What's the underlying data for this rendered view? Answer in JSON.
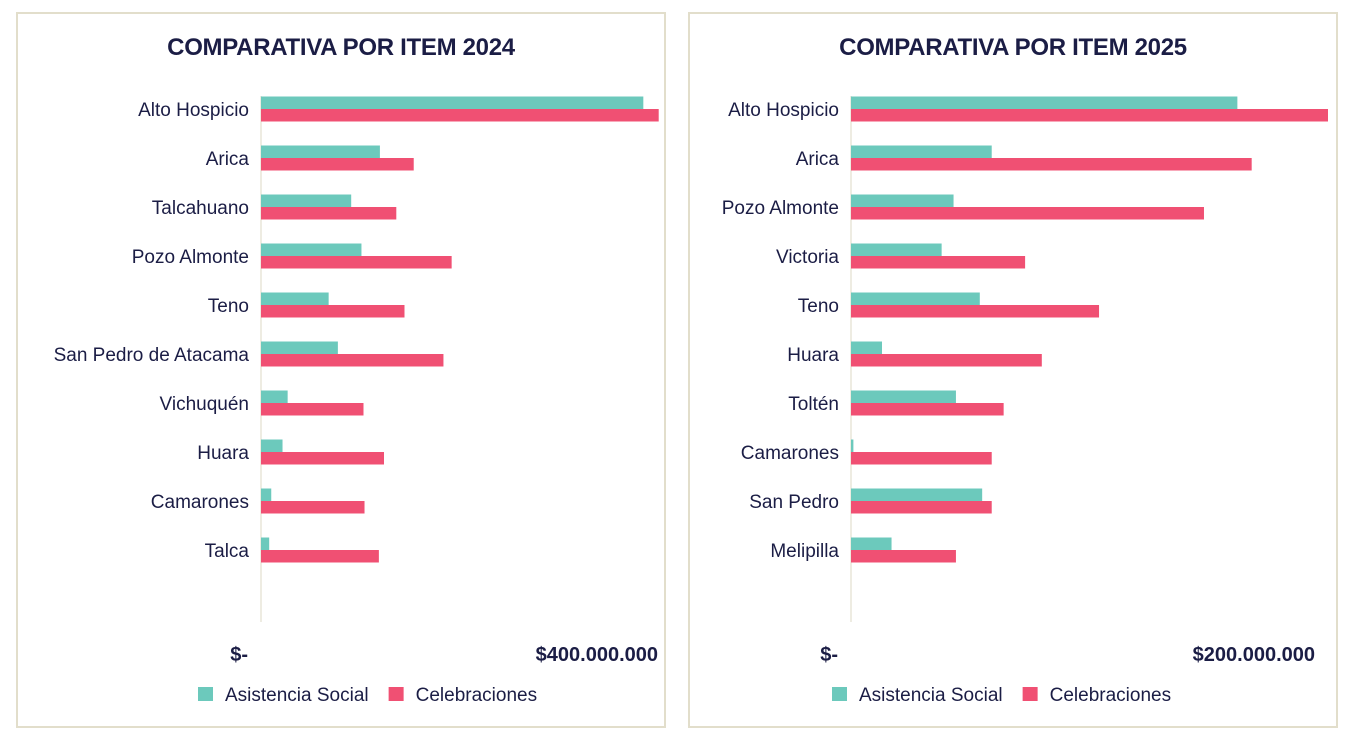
{
  "chart_data": [
    {
      "type": "bar",
      "orientation": "horizontal",
      "title": "COMPARATIVA POR ITEM 2024",
      "categories": [
        "Alto Hospicio",
        "Arica",
        "Talcahuano",
        "Pozo Almonte",
        "Teno",
        "San Pedro de Atacama",
        "Vichuquén",
        "Huara",
        "Camarones",
        "Talca"
      ],
      "series": [
        {
          "name": "Asistencia Social",
          "color": "#6cc9bc",
          "values": [
            373000000,
            116000000,
            88000000,
            98000000,
            66000000,
            75000000,
            26000000,
            21000000,
            10000000,
            8000000
          ]
        },
        {
          "name": "Celebraciones",
          "color": "#f05073",
          "values": [
            388000000,
            149000000,
            132000000,
            186000000,
            140000000,
            178000000,
            100000000,
            120000000,
            101000000,
            115000000
          ]
        }
      ],
      "xlim": [
        0,
        400000000
      ],
      "tick_labels": [
        "$-",
        "$400.000.000"
      ],
      "grid": false,
      "legend": "bottom"
    },
    {
      "type": "bar",
      "orientation": "horizontal",
      "title": "COMPARATIVA POR ITEM 2025",
      "categories": [
        "Alto Hospicio",
        "Arica",
        "Pozo Almonte",
        "Victoria",
        "Teno",
        "Huara",
        "Toltén",
        "Camarones",
        "San Pedro",
        "Melipilla"
      ],
      "series": [
        {
          "name": "Asistencia Social",
          "color": "#6cc9bc",
          "values": [
            162000000,
            59000000,
            43000000,
            38000000,
            54000000,
            13000000,
            44000000,
            1000000,
            55000000,
            17000000
          ]
        },
        {
          "name": "Celebraciones",
          "color": "#f05073",
          "values": [
            200000000,
            168000000,
            148000000,
            73000000,
            104000000,
            80000000,
            64000000,
            59000000,
            59000000,
            44000000
          ]
        }
      ],
      "xlim": [
        0,
        200000000
      ],
      "tick_labels": [
        "$-",
        "$200.000.000"
      ],
      "grid": false,
      "legend": "bottom"
    }
  ]
}
